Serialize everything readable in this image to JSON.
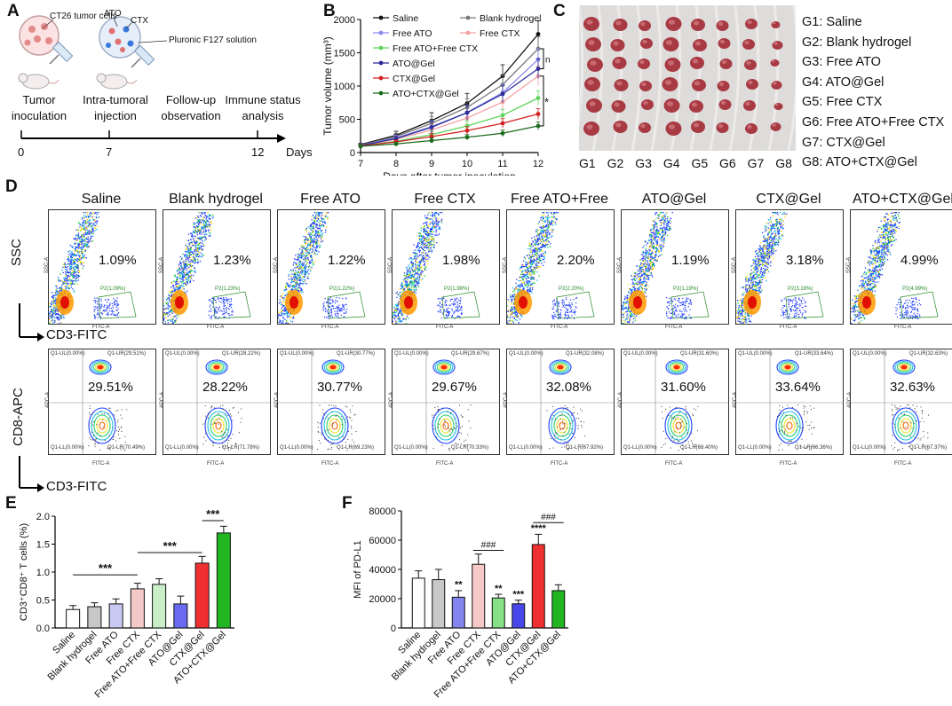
{
  "panel_labels": {
    "A": "A",
    "B": "B",
    "C": "C",
    "D": "D",
    "E": "E",
    "F": "F"
  },
  "panel_a": {
    "cells_label": "CT26 tumor cells",
    "ato_label": "ATO",
    "ctx_label": "CTX",
    "solution_label": "Pluronic F127 solution",
    "steps": [
      "Tumor\ninoculation",
      "Intra-tumoral\ninjection",
      "Follow-up\nobservation",
      "Immune status\nanalysis"
    ],
    "ticks": [
      "0",
      "7",
      "12"
    ],
    "days_label": "Days"
  },
  "panel_c": {
    "legend": [
      "G1: Saline",
      "G2: Blank hydrogel",
      "G3: Free ATO",
      "G4: ATO@Gel",
      "G5: Free CTX",
      "G6: Free ATO+Free CTX",
      "G7: CTX@Gel",
      "G8: ATO+CTX@Gel"
    ],
    "groups": [
      "G1",
      "G2",
      "G3",
      "G4",
      "G5",
      "G6",
      "G7",
      "G8"
    ]
  },
  "panel_d": {
    "groups": [
      "Saline",
      "Blank hydrogel",
      "Free ATO",
      "Free CTX",
      "Free ATO+Free CTX",
      "ATO@Gel",
      "CTX@Gel",
      "ATO+CTX@Gel"
    ],
    "cd3_pct": [
      "1.09%",
      "1.23%",
      "1.22%",
      "1.98%",
      "2.20%",
      "1.19%",
      "3.18%",
      "4.99%"
    ],
    "cd8_pct": [
      "29.51%",
      "28.22%",
      "30.77%",
      "29.67%",
      "32.08%",
      "31.60%",
      "33.64%",
      "32.63%"
    ],
    "ssc_axis": "SSC",
    "cd3_axis": "CD3-FITC",
    "cd8_axis": "CD8-APC",
    "fitc_label": "FITC-A",
    "ssca_label": "SSC-A",
    "apca_label": "APC-A",
    "q1_ul": "Q1-UL(0.00%)",
    "q1_ll": "Q1-LL(0.00%)",
    "q1_ur": [
      "Q1-UR(29.51%)",
      "Q1-UR(28.22%)",
      "Q1-UR(30.77%)",
      "Q1-UR(29.67%)",
      "Q1-UR(32.08%)",
      "Q1-UR(31.60%)",
      "Q1-UR(33.64%)",
      "Q1-UR(32.63%)"
    ],
    "q1_lr": [
      "Q1-LR(70.49%)",
      "Q1-LR(71.78%)",
      "Q1-LR(69.23%)",
      "Q1-LR(70.33%)",
      "Q1-LR(67.92%)",
      "Q1-LR(68.40%)",
      "Q1-LR(66.36%)",
      "Q1-LR(67.37%)"
    ],
    "p2": [
      "P2(1.09%)",
      "P2(1.23%)",
      "P2(1.22%)",
      "P2(1.98%)",
      "P2(2.20%)",
      "P2(1.19%)",
      "P2(3.18%)",
      "P2(4.99%)"
    ]
  },
  "chart_data": [
    {
      "type": "line",
      "title": "",
      "xlabel": "Days after tumor inoculation",
      "ylabel": "Tumor volume (mm³)",
      "x": [
        7,
        8,
        9,
        10,
        11,
        12
      ],
      "xlim": [
        7,
        12
      ],
      "ylim": [
        0,
        2000
      ],
      "yticks": [
        0,
        500,
        1000,
        1500,
        2000
      ],
      "series": [
        {
          "name": "Saline",
          "color": "#111111",
          "values": [
            120,
            260,
            480,
            740,
            1150,
            1780
          ],
          "err": [
            20,
            60,
            120,
            150,
            170,
            200
          ]
        },
        {
          "name": "Blank hydrogel",
          "color": "#7a7a7a",
          "values": [
            110,
            240,
            440,
            680,
            1020,
            1560
          ],
          "err": [
            20,
            50,
            100,
            130,
            150,
            180
          ]
        },
        {
          "name": "Free ATO",
          "color": "#8c8cf0",
          "values": [
            110,
            220,
            390,
            600,
            900,
            1400
          ],
          "err": [
            20,
            40,
            90,
            110,
            130,
            160
          ]
        },
        {
          "name": "Free CTX",
          "color": "#f4a3a3",
          "values": [
            105,
            200,
            340,
            520,
            760,
            1150
          ],
          "err": [
            20,
            40,
            80,
            100,
            120,
            150
          ]
        },
        {
          "name": "Free ATO+Free CTX",
          "color": "#5fd35f",
          "values": [
            100,
            170,
            270,
            400,
            560,
            820
          ],
          "err": [
            15,
            30,
            60,
            80,
            90,
            110
          ]
        },
        {
          "name": "ATO@Gel",
          "color": "#2b2b9a",
          "values": [
            105,
            210,
            380,
            600,
            880,
            1260
          ],
          "err": [
            20,
            40,
            90,
            110,
            130,
            150
          ]
        },
        {
          "name": "CTX@Gel",
          "color": "#d42020",
          "values": [
            100,
            160,
            240,
            330,
            440,
            580
          ],
          "err": [
            15,
            30,
            50,
            60,
            70,
            80
          ]
        },
        {
          "name": "ATO+CTX@Gel",
          "color": "#1a6b1a",
          "values": [
            95,
            130,
            180,
            230,
            290,
            400
          ],
          "err": [
            15,
            25,
            40,
            40,
            50,
            60
          ]
        }
      ],
      "annotations": [
        "ns",
        "*"
      ]
    },
    {
      "type": "bar",
      "title": "",
      "xlabel": "",
      "ylabel": "CD3⁺CD8⁺ T cells (%)",
      "categories": [
        "Saline",
        "Blank hydrogel",
        "Free ATO",
        "Free CTX",
        "Free ATO+Free CTX",
        "ATO@Gel",
        "CTX@Gel",
        "ATO+CTX@Gel"
      ],
      "values": [
        0.33,
        0.38,
        0.43,
        0.7,
        0.78,
        0.43,
        1.16,
        1.7
      ],
      "err": [
        0.07,
        0.07,
        0.09,
        0.1,
        0.1,
        0.14,
        0.12,
        0.12
      ],
      "colors": [
        "#ffffff",
        "#c8c8c8",
        "#c9c9f3",
        "#f6c9c9",
        "#c9efc9",
        "#6a6af0",
        "#f03030",
        "#22b522"
      ],
      "ylim": [
        0,
        2.0
      ],
      "yticks": [
        "0.0",
        "0.5",
        "1.0",
        "1.5",
        "2.0"
      ],
      "annotations": [
        "***",
        "***",
        "***"
      ]
    },
    {
      "type": "bar",
      "title": "",
      "xlabel": "",
      "ylabel": "MFI of PD-L1",
      "categories": [
        "Saline",
        "Blank hydrogel",
        "Free ATO",
        "Free CTX",
        "Free ATO+Free CTX",
        "ATO@Gel",
        "CTX@Gel",
        "ATO+CTX@Gel"
      ],
      "values": [
        34000,
        33000,
        21000,
        43500,
        20500,
        16500,
        57000,
        25500
      ],
      "err": [
        5000,
        7000,
        4500,
        7000,
        2500,
        2500,
        7000,
        4000
      ],
      "colors": [
        "#ffffff",
        "#c8c8c8",
        "#8484ef",
        "#f6c9c9",
        "#86e086",
        "#4848ea",
        "#f03030",
        "#22b522"
      ],
      "ylim": [
        0,
        80000
      ],
      "yticks": [
        "0",
        "20000",
        "40000",
        "60000",
        "80000"
      ],
      "annotations": [
        "**",
        "**",
        "***",
        "****",
        "###",
        "###"
      ]
    }
  ]
}
